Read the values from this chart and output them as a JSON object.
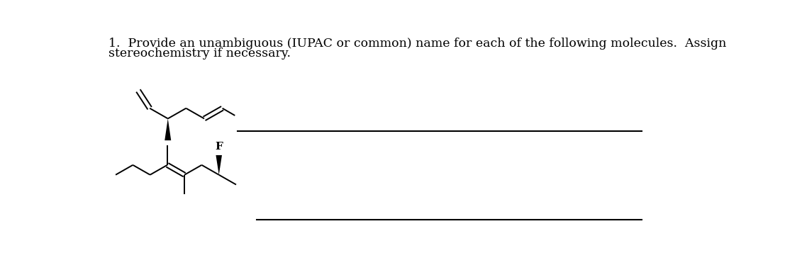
{
  "title_line1": "1.  Provide an unambiguous (IUPAC or common) name for each of the following molecules.  Assign",
  "title_line2": "stereochemistry if necessary.",
  "bg_color": "#ffffff",
  "line_color": "#000000",
  "font_size_title": 12.5,
  "fig_width": 11.31,
  "fig_height": 3.81
}
